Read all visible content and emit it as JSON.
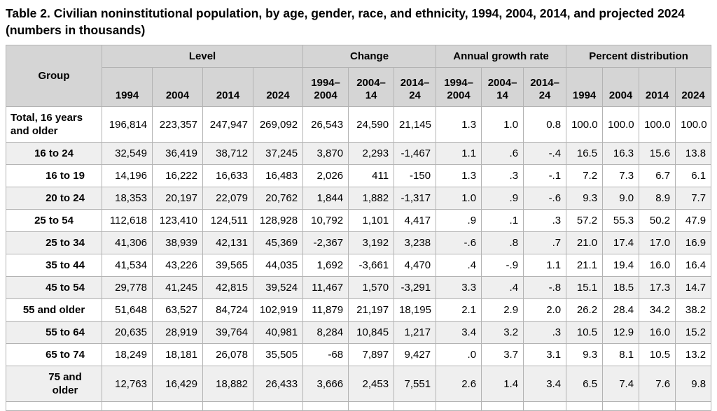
{
  "title": "Table 2. Civilian noninstitutional population, by age, gender, race, and ethnicity, 1994, 2004, 2014, and projected 2024 (numbers in thousands)",
  "colors": {
    "header_bg": "#d5d5d5",
    "alt_row_bg": "#efefef",
    "inner_border": "#b3b3b3",
    "outer_border": "#8c8c8c"
  },
  "table": {
    "group_header": "Group",
    "sections": [
      {
        "label": "Level",
        "columns": [
          "1994",
          "2004",
          "2014",
          "2024"
        ]
      },
      {
        "label": "Change",
        "columns": [
          "1994–\n2004",
          "2004–\n14",
          "2014–\n24"
        ]
      },
      {
        "label": "Annual growth rate",
        "columns": [
          "1994–\n2004",
          "2004–\n14",
          "2014–\n24"
        ]
      },
      {
        "label": "Percent distribution",
        "columns": [
          "1994",
          "2004",
          "2014",
          "2024"
        ]
      }
    ],
    "rows": [
      {
        "group": "Total, 16 years and older",
        "indent": 0,
        "values": [
          "196,814",
          "223,357",
          "247,947",
          "269,092",
          "26,543",
          "24,590",
          "21,145",
          "1.3",
          "1.0",
          "0.8",
          "100.0",
          "100.0",
          "100.0",
          "100.0"
        ]
      },
      {
        "group": "16 to 24",
        "indent": 1,
        "values": [
          "32,549",
          "36,419",
          "38,712",
          "37,245",
          "3,870",
          "2,293",
          "-1,467",
          "1.1",
          ".6",
          "-.4",
          "16.5",
          "16.3",
          "15.6",
          "13.8"
        ]
      },
      {
        "group": "16 to 19",
        "indent": 2,
        "values": [
          "14,196",
          "16,222",
          "16,633",
          "16,483",
          "2,026",
          "411",
          "-150",
          "1.3",
          ".3",
          "-.1",
          "7.2",
          "7.3",
          "6.7",
          "6.1"
        ]
      },
      {
        "group": "20 to 24",
        "indent": 2,
        "values": [
          "18,353",
          "20,197",
          "22,079",
          "20,762",
          "1,844",
          "1,882",
          "-1,317",
          "1.0",
          ".9",
          "-.6",
          "9.3",
          "9.0",
          "8.9",
          "7.7"
        ]
      },
      {
        "group": "25 to 54",
        "indent": 1,
        "values": [
          "112,618",
          "123,410",
          "124,511",
          "128,928",
          "10,792",
          "1,101",
          "4,417",
          ".9",
          ".1",
          ".3",
          "57.2",
          "55.3",
          "50.2",
          "47.9"
        ]
      },
      {
        "group": "25 to 34",
        "indent": 2,
        "values": [
          "41,306",
          "38,939",
          "42,131",
          "45,369",
          "-2,367",
          "3,192",
          "3,238",
          "-.6",
          ".8",
          ".7",
          "21.0",
          "17.4",
          "17.0",
          "16.9"
        ]
      },
      {
        "group": "35 to 44",
        "indent": 2,
        "values": [
          "41,534",
          "43,226",
          "39,565",
          "44,035",
          "1,692",
          "-3,661",
          "4,470",
          ".4",
          "-.9",
          "1.1",
          "21.1",
          "19.4",
          "16.0",
          "16.4"
        ]
      },
      {
        "group": "45 to 54",
        "indent": 2,
        "values": [
          "29,778",
          "41,245",
          "42,815",
          "39,524",
          "11,467",
          "1,570",
          "-3,291",
          "3.3",
          ".4",
          "-.8",
          "15.1",
          "18.5",
          "17.3",
          "14.7"
        ]
      },
      {
        "group": "55 and older",
        "indent": 1,
        "values": [
          "51,648",
          "63,527",
          "84,724",
          "102,919",
          "11,879",
          "21,197",
          "18,195",
          "2.1",
          "2.9",
          "2.0",
          "26.2",
          "28.4",
          "34.2",
          "38.2"
        ]
      },
      {
        "group": "55 to 64",
        "indent": 2,
        "values": [
          "20,635",
          "28,919",
          "39,764",
          "40,981",
          "8,284",
          "10,845",
          "1,217",
          "3.4",
          "3.2",
          ".3",
          "10.5",
          "12.9",
          "16.0",
          "15.2"
        ]
      },
      {
        "group": "65 to 74",
        "indent": 2,
        "values": [
          "18,249",
          "18,181",
          "26,078",
          "35,505",
          "-68",
          "7,897",
          "9,427",
          ".0",
          "3.7",
          "3.1",
          "9.3",
          "8.1",
          "10.5",
          "13.2"
        ]
      },
      {
        "group": "75 and older",
        "indent": 2,
        "values": [
          "12,763",
          "16,429",
          "18,882",
          "26,433",
          "3,666",
          "2,453",
          "7,551",
          "2.6",
          "1.4",
          "3.4",
          "6.5",
          "7.4",
          "7.6",
          "9.8"
        ]
      }
    ]
  }
}
